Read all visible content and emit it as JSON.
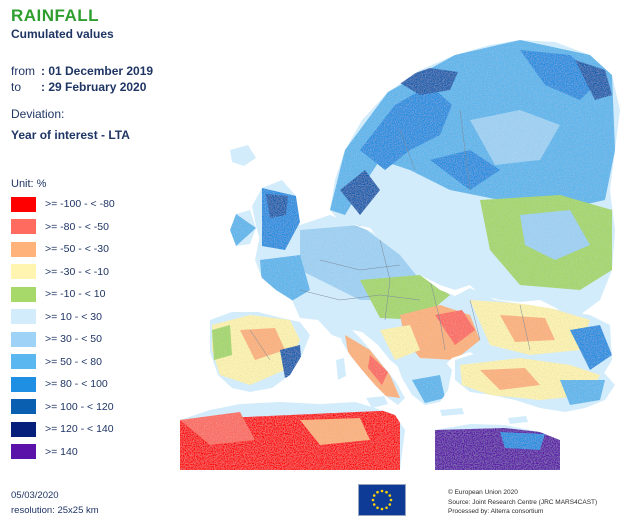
{
  "header": {
    "title": "RAINFALL",
    "subtitle": "Cumulated values"
  },
  "period": {
    "from_label": "from",
    "from_value": ": 01 December 2019",
    "to_label": "to",
    "to_value": ": 29 February 2020"
  },
  "deviation": {
    "label": "Deviation:",
    "value": "Year of interest - LTA"
  },
  "legend": {
    "unit_label": "Unit:  %",
    "items": [
      {
        "label": ">= -100 - < -80",
        "color": "#ff0000"
      },
      {
        "label": ">= -80 - < -50",
        "color": "#ff6b5e"
      },
      {
        "label": ">= -50 - < -30",
        "color": "#ffb27a"
      },
      {
        "label": ">= -30 - < -10",
        "color": "#fff5b0"
      },
      {
        "label": ">= -10 - < 10",
        "color": "#a6d96a"
      },
      {
        "label": ">= 10 - < 30",
        "color": "#d3ecfb"
      },
      {
        "label": ">= 30 - < 50",
        "color": "#9ed3f7"
      },
      {
        "label": ">= 50 - < 80",
        "color": "#5ab7f0"
      },
      {
        "label": ">= 80 - < 100",
        "color": "#1f8fe3"
      },
      {
        "label": ">= 100 - < 120",
        "color": "#0b5fb0"
      },
      {
        "label": ">= 120 - < 140",
        "color": "#061f7a"
      },
      {
        "label": ">= 140",
        "color": "#5a12a8"
      }
    ]
  },
  "footer": {
    "date": "05/03/2020",
    "resolution": "resolution:  25x25 km",
    "credit_lines": [
      "© European Union 2020",
      "Source: Joint Research Centre (JRC MARS4CAST)",
      "Processed by: Alterra consortium"
    ]
  }
}
